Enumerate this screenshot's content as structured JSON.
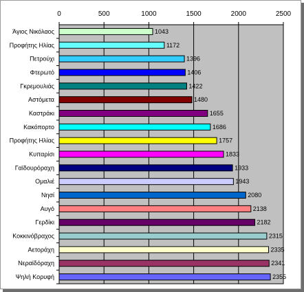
{
  "chart_data": {
    "type": "bar",
    "orientation": "horizontal",
    "title": "",
    "xlabel": "",
    "ylabel": "",
    "xlim": [
      0,
      2500
    ],
    "x_ticks": [
      0,
      500,
      1000,
      1500,
      2000,
      2500
    ],
    "grid": "vertical-major",
    "plot_background": "#c0c0c0",
    "x_axis_position": "top",
    "categories": [
      "Άγιος Νικόλαος",
      "Προφήτης Ηλίας",
      "Πετρούχι",
      "Φτερωτό",
      "Γκρεμουλιάς",
      "Αστόμετα",
      "Καστράκι",
      "Κακόπορτο",
      "Προφήτης Ηλίας",
      "Κυπαρίσι",
      "Γαϊδουρόραχη",
      "Ομαλιέ",
      "Νησί",
      "Αυγό",
      "Γερδίκι",
      "Κοκκινόβραχος",
      "Αετοράχη",
      "Νεραϊδόραχη",
      "Ψηλή Κορυφή"
    ],
    "values": [
      1043,
      1172,
      1396,
      1406,
      1422,
      1480,
      1655,
      1686,
      1757,
      1833,
      1933,
      1943,
      2080,
      2138,
      2182,
      2315,
      2335,
      2341,
      2355
    ],
    "value_labels": [
      "1043",
      "1172",
      "1396",
      "1406",
      "1422",
      "1480",
      "1655",
      "1686",
      "1757",
      "1833",
      "1933",
      "1943",
      "2080",
      "2138",
      "2182",
      "2315",
      "2335",
      "2341",
      "2355"
    ],
    "colors": [
      "#ccffcc",
      "#66ffff",
      "#33ccff",
      "#0000ff",
      "#008080",
      "#800000",
      "#800080",
      "#00ffff",
      "#ffff00",
      "#ff00ff",
      "#000080",
      "#ccccff",
      "#0066cc",
      "#ff8080",
      "#660066",
      "#99cccc",
      "#ffffcc",
      "#993366",
      "#6666ff"
    ]
  }
}
